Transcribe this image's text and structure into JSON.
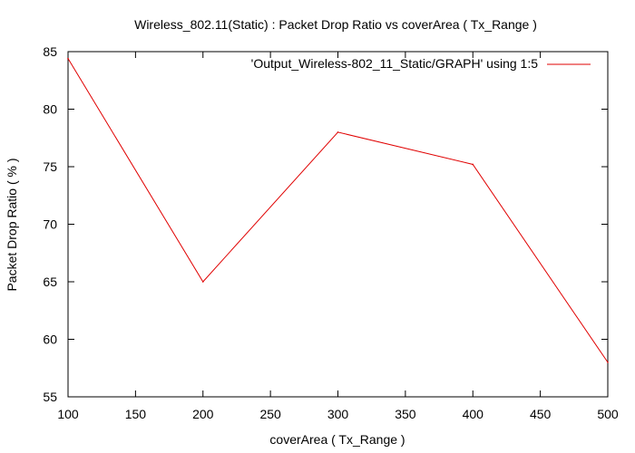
{
  "chart_data": {
    "type": "line",
    "title": "Wireless_802.11(Static) : Packet Drop Ratio vs coverArea ( Tx_Range )",
    "xlabel": "coverArea ( Tx_Range )",
    "ylabel": "Packet Drop Ratio ( % )",
    "xlim": [
      100,
      500
    ],
    "ylim": [
      55,
      85
    ],
    "xticks": [
      100,
      150,
      200,
      250,
      300,
      350,
      400,
      450,
      500
    ],
    "yticks": [
      55,
      60,
      65,
      70,
      75,
      80,
      85
    ],
    "grid": false,
    "legend_position": "top-right",
    "series": [
      {
        "name": "'Output_Wireless-802_11_Static/GRAPH' using 1:5",
        "color": "#e00000",
        "x": [
          100,
          200,
          300,
          400,
          500
        ],
        "y": [
          84.4,
          65.0,
          78.0,
          75.2,
          58.0
        ]
      }
    ]
  }
}
